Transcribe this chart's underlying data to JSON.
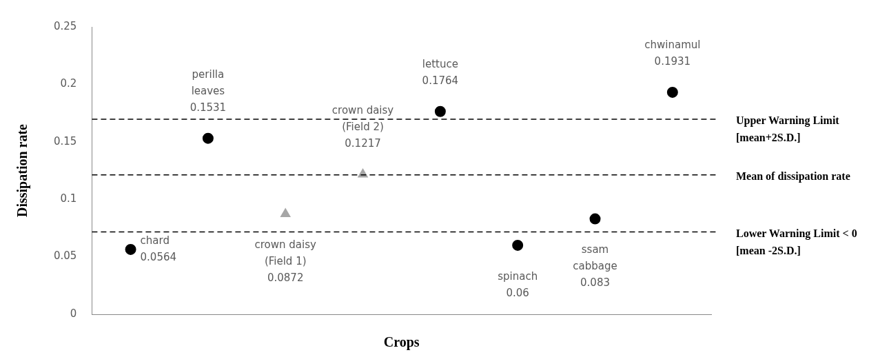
{
  "chart_data": {
    "type": "scatter",
    "xlabel": "Crops",
    "ylabel": "Dissipation rate",
    "categories": [
      null,
      null,
      null,
      null,
      null,
      null,
      null,
      null
    ],
    "ylim": [
      0,
      0.25
    ],
    "yticks": [
      0,
      0.05,
      0.1,
      0.15,
      0.2,
      0.25
    ],
    "tick_labels": "y",
    "grid": false,
    "series": [
      {
        "color": "#000000",
        "marker": "circle",
        "values": [
          0.0564,
          0.1531,
          null,
          null,
          0.1764,
          0.06,
          0.083,
          0.1931
        ],
        "value_labels": [
          "chard\n0.0564",
          "perilla\nleaves\n0.1531",
          null,
          null,
          "lettuce\n0.1764",
          "spinach\n0.06",
          "ssam\ncabbage\n0.083",
          "chwinamul\n0.1931"
        ]
      },
      {
        "color": "#a6a6a6",
        "marker": "triangle",
        "values": [
          null,
          null,
          0.0872,
          0.1217,
          null,
          null,
          null,
          null
        ],
        "value_labels": [
          null,
          null,
          "crown daisy\n(Field 1)\n0.0872",
          "crown daisy\n(Field 2)\n0.1217",
          null,
          null,
          null,
          null
        ]
      }
    ],
    "ref_lines": [
      {
        "axis": "y",
        "value": 0.1697,
        "label": "Upper Warning Limit\n[mean+2S.D.]",
        "color": "#000000",
        "line_style": "dashed"
      },
      {
        "axis": "y",
        "value": 0.1212,
        "label": "Mean of dissipation rate",
        "color": "#000000",
        "line_style": "dashed"
      },
      {
        "axis": "y",
        "value": 0.0716,
        "label": "Lower Warning Limit < 0\n[mean -2S.D.]",
        "color": "#000000",
        "line_style": "dashed"
      }
    ]
  }
}
